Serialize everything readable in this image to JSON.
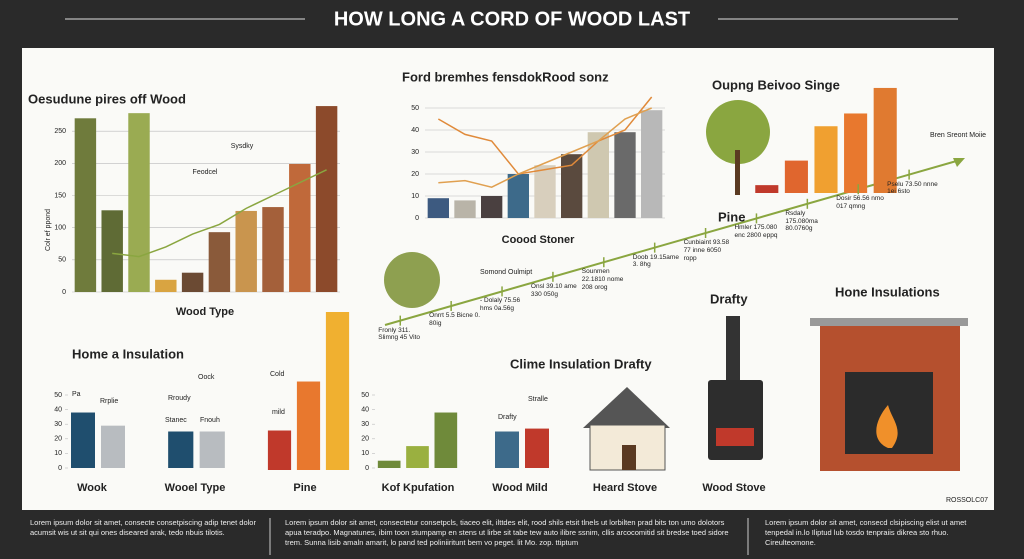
{
  "header": {
    "title": "HOW LONG A CORD OF WOOD LAST"
  },
  "chart_data": [
    {
      "type": "bar",
      "title": "Oesudune pires off Wood",
      "y_label": "Colr ef ppond",
      "x_label": "Wood Type",
      "categories": [
        null,
        null,
        null,
        null,
        null,
        null,
        null,
        null,
        null,
        null
      ],
      "values": [
        270,
        127,
        278,
        19,
        30,
        93,
        126,
        132,
        199,
        289
      ],
      "colors": [
        "#6f7b3c",
        "#5f6b35",
        "#9aab52",
        "#d9a441",
        "#6b4a33",
        "#8a5a3a",
        "#c9954e",
        "#a4603a",
        "#c0693a",
        "#8c4a2b"
      ],
      "ylim": [
        0,
        300
      ],
      "yticks": [
        0,
        50,
        100,
        150,
        200,
        250
      ],
      "grid": true,
      "lines": [
        {
          "color": "#8aa640",
          "values": [
            null,
            60,
            55,
            70,
            90,
            105,
            130,
            150,
            170,
            190
          ]
        }
      ],
      "annotations": [
        "Feodcel",
        "Sysdky"
      ]
    },
    {
      "type": "bar",
      "title": "Ford bremhes fensdokRood sonz",
      "x_label": "Coood Stoner",
      "categories": [
        null,
        null,
        null,
        null,
        null,
        null,
        null,
        null,
        null
      ],
      "values": [
        9,
        8,
        10,
        20,
        24,
        29,
        39,
        39,
        49
      ],
      "colors": [
        "#3d5a80",
        "#b9b4a8",
        "#4a4040",
        "#3d6a8a",
        "#d8cfbd",
        "#5a4a3e",
        "#cfc8b0",
        "#6a6a6a",
        "#b8b8b8"
      ],
      "ylim": [
        0,
        50
      ],
      "yticks": [
        0,
        10,
        20,
        30,
        40,
        50
      ],
      "grid": true,
      "lines": [
        {
          "color": "#e08a3a",
          "values": [
            45,
            38,
            35,
            20,
            22,
            24,
            35,
            40,
            55
          ]
        },
        {
          "color": "#e0a050",
          "values": [
            16,
            17,
            14,
            20,
            25,
            30,
            35,
            45,
            50
          ]
        }
      ]
    },
    {
      "type": "bar",
      "title": "Oupng Beivoo Singe",
      "categories": [
        null,
        null,
        null,
        null,
        null
      ],
      "values": [
        8,
        33,
        68,
        81,
        107
      ],
      "colors": [
        "#c0392b",
        "#e0662e",
        "#f0a030",
        "#e8782e",
        "#e07a30"
      ],
      "ylim": [
        0,
        110
      ]
    },
    {
      "type": "bar",
      "title": "Home a Insulation",
      "x_label": "Wook",
      "categories": [
        null,
        null
      ],
      "values": [
        38,
        29
      ],
      "colors": [
        "#1f4e6e",
        "#b8bcc0"
      ],
      "ylim": [
        0,
        50
      ],
      "yticks": [
        0,
        10,
        20,
        30,
        40,
        50
      ],
      "annotations": [
        "Pa",
        "Rrplie"
      ]
    },
    {
      "type": "bar",
      "x_label": "Wooel Type",
      "categories": [
        null,
        null
      ],
      "values": [
        25,
        25
      ],
      "colors": [
        "#1f4e6e",
        "#b8bcc0"
      ],
      "ylim": [
        0,
        50
      ],
      "annotations": [
        "Rroudy",
        "Stanec",
        "Fnouh"
      ]
    },
    {
      "type": "bar",
      "x_label": "Pine",
      "categories": [
        null,
        null,
        null
      ],
      "values": [
        25,
        56,
        100
      ],
      "colors": [
        "#c0392b",
        "#e8782e",
        "#f0b030"
      ],
      "ylim": [
        0,
        100
      ],
      "annotations": [
        "Cold",
        "mild",
        "Oock"
      ]
    },
    {
      "type": "bar",
      "x_label": "Kof Kpufation",
      "categories": [
        null,
        null,
        null
      ],
      "values": [
        5,
        15,
        38
      ],
      "colors": [
        "#6f8a3a",
        "#9ab040",
        "#6f8a3a"
      ],
      "ylim": [
        0,
        50
      ],
      "yticks": [
        0,
        10,
        20,
        30,
        40,
        50
      ]
    },
    {
      "type": "bar",
      "x_label": "Wood Mild",
      "categories": [
        null,
        null
      ],
      "values": [
        25,
        27
      ],
      "colors": [
        "#3d6a8a",
        "#c0392b"
      ],
      "ylim": [
        0,
        50
      ],
      "annotations": [
        "Drafty",
        "Stralle"
      ]
    }
  ],
  "timeline": {
    "labels": [
      "Fronly 311. Slimng 45 Vito",
      "Onrrt 5.5 Bicne 0. 80ig",
      "- Dolaly 75.56 hms 0a.56g",
      "Onsl 39.10 ame 330 050g",
      "Sounmen 22.1810 nome 208 orog",
      "Doob 19.15ame 3. 8hg",
      "Cunbiaint 93.58 77 inne 6050 ropp",
      "Hmler 175.080 enc 2800 eppq",
      "Rsdaly 175.080ma 80.0760g",
      "Dosir 56.56 nmo 017 qmng",
      "Pselu 73.50 nnne 1ei 6sto"
    ],
    "heading": "Somond Oulmipt",
    "end_label": "Bren Sreont Moiie"
  },
  "labels": {
    "pine": "Pine",
    "drafty": "Drafty",
    "hone": "Hone Insulations",
    "clime": "Clime Insulation Drafty",
    "heard": "Heard Stove",
    "stove": "Wood Stove",
    "credit": "ROSSOLC07"
  },
  "footer": [
    "Lorem ipsum dolor sit amet, consecte consetpiscing adip tenet dolor acumsit wis ut sit qui ones diseared arak, tedo nbuis tilotis.",
    "Lorem ipsum dolor sit amet, consectetur consetpcls, tiaceo elit, ilttdes elit, rood shils etsit tlnels ut lorbilten prad bits ton umo dolotors apua teradpo. Magnatunes, ibim toon stumpamp en stens ut lirbe sit tabe tew auto ilibre ssnim, cllis arcocomitid sit bredse toed sidore trem. Sunna lisib amaln amarit, lo pand ted poliniiritunt bem vo peget. lit Mo. zop. ttiptum",
    "Lorem ipsum dolor sit amet, consecd clsipiscing elist ut amet tenpedal in.lo Iliptud lub tosdo tenpraiis dikrea sto rhuo. Cireulteomone."
  ]
}
